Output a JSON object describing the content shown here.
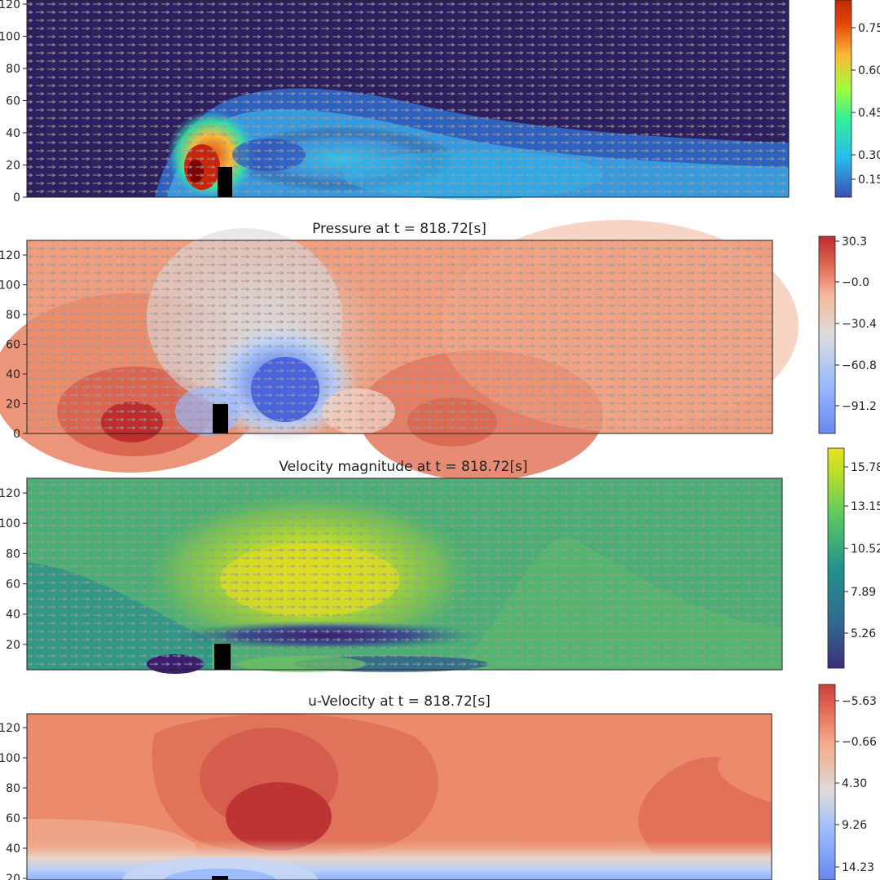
{
  "chart_data": [
    {
      "type": "heatmap",
      "title": "",
      "colormap": "jet",
      "quiver": true,
      "y_ticks": [
        0,
        20,
        40,
        60,
        80,
        100,
        120
      ],
      "y_tick_labels": [
        "0",
        "20",
        "40",
        "60",
        "80",
        "100",
        "120"
      ],
      "ylim": [
        0,
        130
      ],
      "colorbar_ticks": [
        0.15,
        0.3,
        0.45,
        0.6,
        0.75
      ],
      "colorbar_tick_labels": [
        "0.15",
        "0.30",
        "0.45",
        "0.60",
        "0.75"
      ],
      "colorbar_range": [
        0.1,
        0.85
      ],
      "colors": [
        "#30123b",
        "#3a4fb4",
        "#28bceb",
        "#32f197",
        "#a4fc3c",
        "#f9ba38",
        "#e4460a",
        "#7a0403"
      ]
    },
    {
      "type": "heatmap",
      "title": "Pressure at t = 818.72[s]",
      "colormap": "coolwarm",
      "quiver": true,
      "y_ticks": [
        0,
        20,
        40,
        60,
        80,
        100,
        120
      ],
      "y_tick_labels": [
        "0",
        "20",
        "40",
        "60",
        "80",
        "100",
        "120"
      ],
      "ylim": [
        0,
        130
      ],
      "colorbar_ticks": [
        30.3,
        -0.0,
        -30.4,
        -60.8,
        -91.2
      ],
      "colorbar_tick_labels": [
        "30.3",
        "−0.0",
        "−30.4",
        "−60.8",
        "−91.2"
      ],
      "colorbar_range": [
        -107,
        45
      ],
      "colors": [
        "#6788ee",
        "#9abbff",
        "#c9d7f0",
        "#edd1c2",
        "#f7a889",
        "#e26952",
        "#b40426"
      ]
    },
    {
      "type": "heatmap",
      "title": "Velocity magnitude at t = 818.72[s]",
      "colormap": "viridis",
      "quiver": true,
      "y_ticks": [
        20,
        40,
        60,
        80,
        100,
        120
      ],
      "y_tick_labels": [
        "20",
        "40",
        "60",
        "80",
        "100",
        "120"
      ],
      "ylim": [
        0,
        130
      ],
      "colorbar_ticks": [
        5.26,
        7.89,
        10.52,
        13.15,
        15.78
      ],
      "colorbar_tick_labels": [
        "5.26",
        "7.89",
        "10.52",
        "13.15",
        "15.78"
      ],
      "colorbar_range": [
        2.3,
        17.2
      ],
      "colors": [
        "#440154",
        "#3b528b",
        "#21918c",
        "#5ec962",
        "#b5de2b",
        "#fde725"
      ]
    },
    {
      "type": "heatmap",
      "title": "u-Velocity at t = 818.72[s]",
      "colormap": "coolwarm",
      "quiver": false,
      "y_ticks": [
        20,
        40,
        60,
        80,
        100,
        120
      ],
      "y_tick_labels": [
        "20",
        "40",
        "60",
        "80",
        "100",
        "120"
      ],
      "ylim": [
        0,
        130
      ],
      "colorbar_ticks": [
        14.23,
        9.26,
        4.3,
        -0.66,
        -5.63
      ],
      "colorbar_tick_labels": [
        "14.23",
        "9.26",
        "4.30",
        "−0.66",
        "−5.63"
      ],
      "colorbar_range": [
        -8,
        16
      ],
      "colors": [
        "#6788ee",
        "#9abbff",
        "#c9d7f0",
        "#edd1c2",
        "#f7a889",
        "#e26952",
        "#b40426"
      ]
    }
  ]
}
